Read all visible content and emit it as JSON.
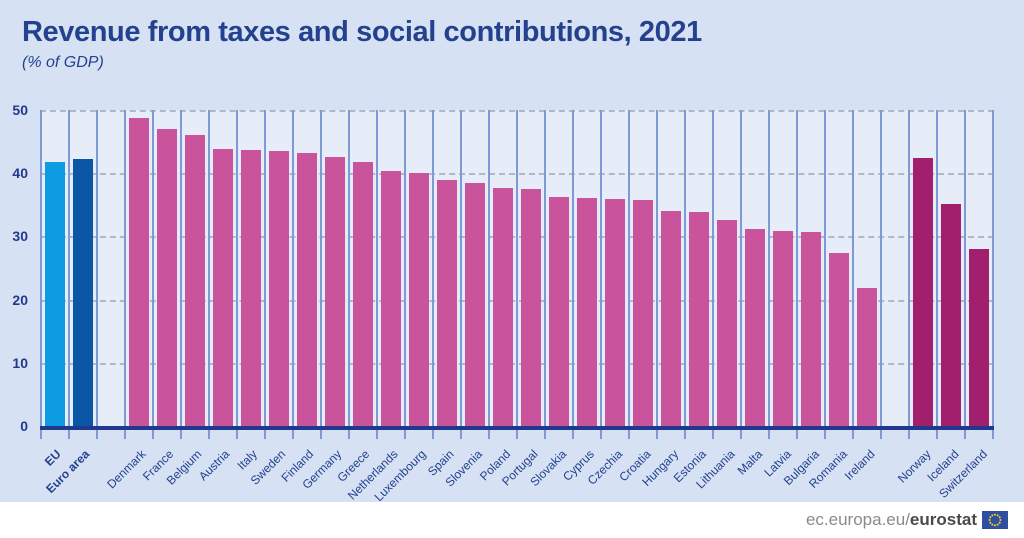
{
  "header": {
    "title": "Revenue from taxes and social contributions, 2021",
    "subtitle": "(% of GDP)"
  },
  "footer": {
    "url_prefix": "ec.europa.eu/",
    "url_bold": "eurostat"
  },
  "chart_data": {
    "type": "bar",
    "title": "Revenue from taxes and social contributions, 2021",
    "subtitle": "(% of GDP)",
    "ylabel": "% of GDP",
    "ylim": [
      0,
      50
    ],
    "yticks": [
      0,
      10,
      20,
      30,
      40,
      50
    ],
    "grid": "horizontal-dashed",
    "legend": "none",
    "colors": {
      "eu_aggregate": "#0d9ce1",
      "euro_area": "#0b57a6",
      "eu_member": "#ca549c",
      "efta": "#a21f6e",
      "background": "#d6e2f4",
      "plot_background": "#e6edf9",
      "axis": "#21398c",
      "text": "#24418e"
    },
    "columns": [
      {
        "label": "EU",
        "value": 41.7,
        "group": "eu_aggregate",
        "bold": true
      },
      {
        "label": "Euro area",
        "value": 42.2,
        "group": "euro_area",
        "bold": true
      },
      {
        "spacer": true
      },
      {
        "label": "Denmark",
        "value": 48.8,
        "group": "eu_member"
      },
      {
        "label": "France",
        "value": 47.0,
        "group": "eu_member"
      },
      {
        "label": "Belgium",
        "value": 46.0,
        "group": "eu_member"
      },
      {
        "label": "Austria",
        "value": 43.8,
        "group": "eu_member"
      },
      {
        "label": "Italy",
        "value": 43.6,
        "group": "eu_member"
      },
      {
        "label": "Sweden",
        "value": 43.5,
        "group": "eu_member"
      },
      {
        "label": "Finland",
        "value": 43.2,
        "group": "eu_member"
      },
      {
        "label": "Germany",
        "value": 42.6,
        "group": "eu_member"
      },
      {
        "label": "Greece",
        "value": 41.7,
        "group": "eu_member"
      },
      {
        "label": "Netherlands",
        "value": 40.3,
        "group": "eu_member"
      },
      {
        "label": "Luxembourg",
        "value": 40.0,
        "group": "eu_member"
      },
      {
        "label": "Spain",
        "value": 38.9,
        "group": "eu_member"
      },
      {
        "label": "Slovenia",
        "value": 38.4,
        "group": "eu_member"
      },
      {
        "label": "Poland",
        "value": 37.7,
        "group": "eu_member"
      },
      {
        "label": "Portugal",
        "value": 37.5,
        "group": "eu_member"
      },
      {
        "label": "Slovakia",
        "value": 36.2,
        "group": "eu_member"
      },
      {
        "label": "Cyprus",
        "value": 36.0,
        "group": "eu_member"
      },
      {
        "label": "Czechia",
        "value": 35.9,
        "group": "eu_member"
      },
      {
        "label": "Croatia",
        "value": 35.8,
        "group": "eu_member"
      },
      {
        "label": "Hungary",
        "value": 34.0,
        "group": "eu_member"
      },
      {
        "label": "Estonia",
        "value": 33.8,
        "group": "eu_member"
      },
      {
        "label": "Lithuania",
        "value": 32.6,
        "group": "eu_member"
      },
      {
        "label": "Malta",
        "value": 31.2,
        "group": "eu_member"
      },
      {
        "label": "Latvia",
        "value": 30.8,
        "group": "eu_member"
      },
      {
        "label": "Bulgaria",
        "value": 30.7,
        "group": "eu_member"
      },
      {
        "label": "Romania",
        "value": 27.3,
        "group": "eu_member"
      },
      {
        "label": "Ireland",
        "value": 21.9,
        "group": "eu_member"
      },
      {
        "spacer": true
      },
      {
        "label": "Norway",
        "value": 42.4,
        "group": "efta"
      },
      {
        "label": "Iceland",
        "value": 35.1,
        "group": "efta"
      },
      {
        "label": "Switzerland",
        "value": 28.0,
        "group": "efta"
      }
    ]
  }
}
